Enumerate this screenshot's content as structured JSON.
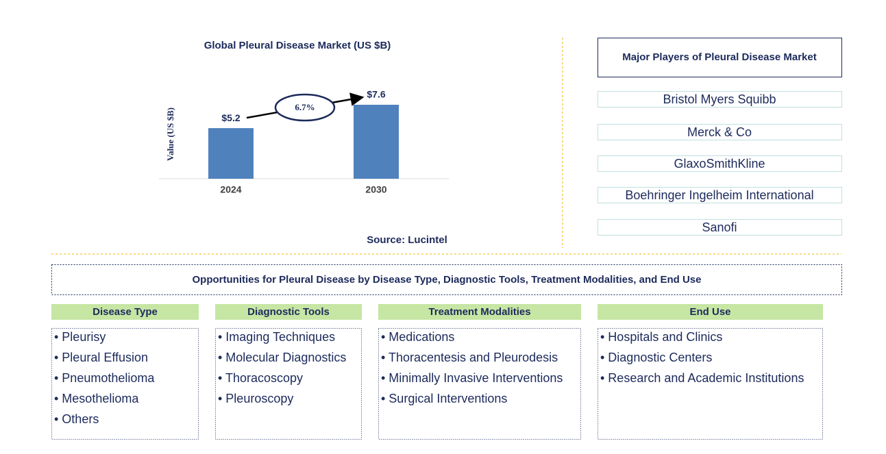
{
  "chart_data": {
    "type": "bar",
    "title": "Global Pleural Disease Market (US $B)",
    "y_label": "Value (US $B)",
    "categories": [
      "2024",
      "2030"
    ],
    "values": [
      5.2,
      7.6
    ],
    "value_labels": [
      "$5.2",
      "$7.6"
    ],
    "color": "#4f81bd",
    "annotation": "6.7%",
    "source": "Source: Lucintel"
  },
  "players": {
    "title": "Major Players of Pleural Disease Market",
    "items": [
      "Bristol Myers Squibb",
      "Merck & Co",
      "GlaxoSmithKline",
      "Boehringer Ingelheim International",
      "Sanofi"
    ]
  },
  "opportunities": {
    "title": "Opportunities for Pleural Disease by Disease Type, Diagnostic Tools, Treatment Modalities, and End Use",
    "columns": [
      {
        "header": "Disease Type",
        "items": [
          "• Pleurisy",
          "• Pleural Effusion",
          "• Pneumothelioma",
          "• Mesothelioma",
          "• Others"
        ]
      },
      {
        "header": "Diagnostic Tools",
        "items": [
          "• Imaging Techniques",
          "• Molecular Diagnostics",
          "• Thoracoscopy",
          "• Pleuroscopy"
        ]
      },
      {
        "header": "Treatment Modalities",
        "items": [
          "• Medications",
          "• Thoracentesis and Pleurodesis",
          "• Minimally Invasive Interventions",
          "• Surgical Interventions"
        ]
      },
      {
        "header": "End Use",
        "items": [
          "• Hospitals and Clinics",
          "• Diagnostic Centers",
          "• Research and Academic Institutions"
        ]
      }
    ]
  }
}
